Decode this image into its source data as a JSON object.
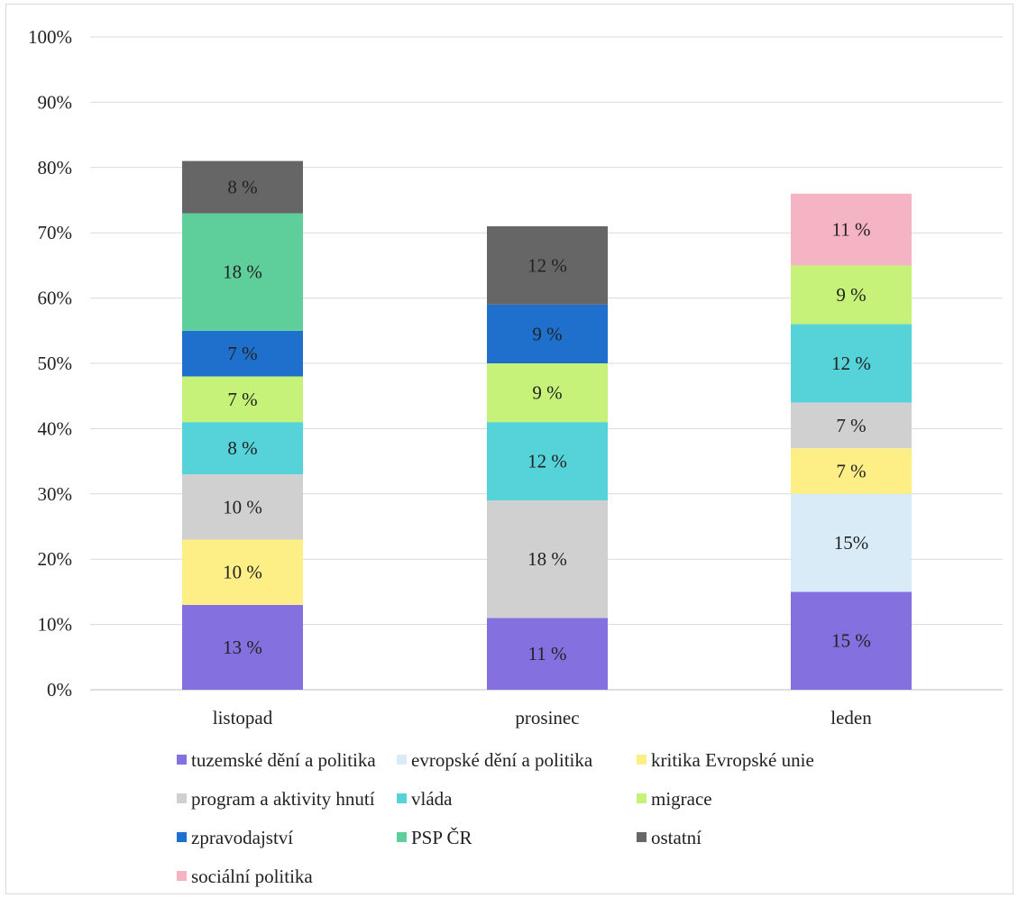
{
  "chart_data": {
    "type": "bar",
    "stacked": true,
    "categories": [
      "listopad",
      "prosinec",
      "leden"
    ],
    "ylim": [
      0,
      100
    ],
    "yticks": [
      "0%",
      "10%",
      "20%",
      "30%",
      "40%",
      "50%",
      "60%",
      "70%",
      "80%",
      "90%",
      "100%"
    ],
    "grid": true,
    "legend_position": "bottom",
    "series": [
      {
        "name": "tuzemské dění a politika",
        "color": "#8570e0",
        "values": [
          13,
          11,
          15
        ],
        "labels": [
          "13 %",
          "11 %",
          "15 %"
        ]
      },
      {
        "name": "evropské dění a politika",
        "color": "#d9ebf7",
        "values": [
          0,
          0,
          15
        ],
        "labels": [
          "",
          "",
          "15%"
        ]
      },
      {
        "name": "kritika Evropské unie",
        "color": "#fdee85",
        "values": [
          10,
          0,
          7
        ],
        "labels": [
          "10 %",
          "",
          "7 %"
        ]
      },
      {
        "name": "program a aktivity hnutí",
        "color": "#d0d0d0",
        "values": [
          10,
          18,
          7
        ],
        "labels": [
          "10 %",
          "18 %",
          "7 %"
        ]
      },
      {
        "name": "vláda",
        "color": "#56d2d9",
        "values": [
          8,
          12,
          12
        ],
        "labels": [
          "8 %",
          "12 %",
          "12 %"
        ]
      },
      {
        "name": "migrace",
        "color": "#c6f27a",
        "values": [
          7,
          9,
          9
        ],
        "labels": [
          "7 %",
          "9 %",
          "9 %"
        ]
      },
      {
        "name": "zpravodajství",
        "color": "#1f6fcc",
        "values": [
          7,
          9,
          0
        ],
        "labels": [
          "7 %",
          "9 %",
          ""
        ]
      },
      {
        "name": "PSP ČR",
        "color": "#5ecf9a",
        "values": [
          18,
          0,
          0
        ],
        "labels": [
          "18 %",
          "",
          ""
        ]
      },
      {
        "name": "ostatní",
        "color": "#666666",
        "values": [
          8,
          12,
          0
        ],
        "labels": [
          "8 %",
          "12 %",
          ""
        ]
      },
      {
        "name": "sociální politika",
        "color": "#f5b4c4",
        "values": [
          0,
          0,
          11
        ],
        "labels": [
          "",
          "",
          "11 %"
        ]
      }
    ]
  }
}
